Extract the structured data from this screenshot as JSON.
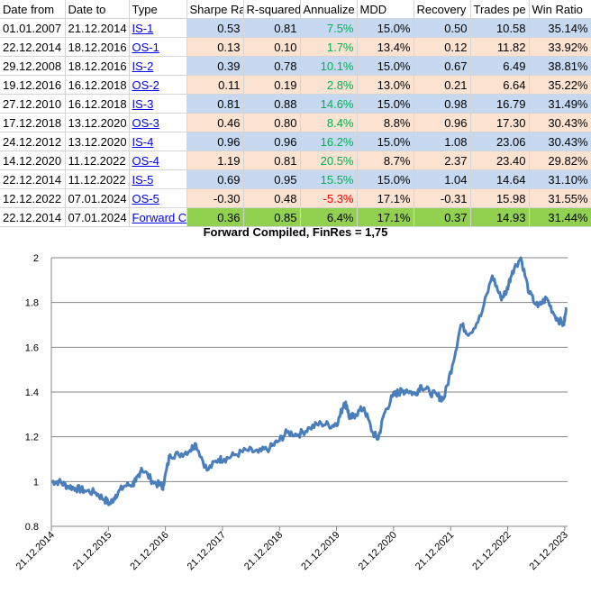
{
  "table": {
    "headers": [
      "Date from",
      "Date to",
      "Type",
      "Sharpe Ra",
      "R-squared",
      "Annualize",
      "MDD",
      "Recovery",
      "Trades pe",
      "Win Ratio"
    ],
    "rows": [
      {
        "kind": "is",
        "from": "01.01.2007",
        "to": "21.12.2014",
        "type": "IS-1",
        "sharpe": "0.53",
        "r2": "0.81",
        "annual": "7.5%",
        "annual_sign": "pos",
        "mdd": "15.0%",
        "recovery": "0.50",
        "trades": "10.58",
        "win": "35.14%"
      },
      {
        "kind": "os",
        "from": "22.12.2014",
        "to": "18.12.2016",
        "type": "OS-1",
        "sharpe": "0.13",
        "r2": "0.10",
        "annual": "1.7%",
        "annual_sign": "pos",
        "mdd": "13.4%",
        "recovery": "0.12",
        "trades": "11.82",
        "win": "33.92%"
      },
      {
        "kind": "is",
        "from": "29.12.2008",
        "to": "18.12.2016",
        "type": "IS-2",
        "sharpe": "0.39",
        "r2": "0.78",
        "annual": "10.1%",
        "annual_sign": "pos",
        "mdd": "15.0%",
        "recovery": "0.67",
        "trades": "6.49",
        "win": "38.81%"
      },
      {
        "kind": "os",
        "from": "19.12.2016",
        "to": "16.12.2018",
        "type": "OS-2",
        "sharpe": "0.11",
        "r2": "0.19",
        "annual": "2.8%",
        "annual_sign": "pos",
        "mdd": "13.0%",
        "recovery": "0.21",
        "trades": "6.64",
        "win": "35.22%"
      },
      {
        "kind": "is",
        "from": "27.12.2010",
        "to": "16.12.2018",
        "type": "IS-3",
        "sharpe": "0.81",
        "r2": "0.88",
        "annual": "14.6%",
        "annual_sign": "pos",
        "mdd": "15.0%",
        "recovery": "0.98",
        "trades": "16.79",
        "win": "31.49%"
      },
      {
        "kind": "os",
        "from": "17.12.2018",
        "to": "13.12.2020",
        "type": "OS-3",
        "sharpe": "0.46",
        "r2": "0.80",
        "annual": "8.4%",
        "annual_sign": "pos",
        "mdd": "8.8%",
        "recovery": "0.96",
        "trades": "17.30",
        "win": "30.43%"
      },
      {
        "kind": "is",
        "from": "24.12.2012",
        "to": "13.12.2020",
        "type": "IS-4",
        "sharpe": "0.96",
        "r2": "0.96",
        "annual": "16.2%",
        "annual_sign": "pos",
        "mdd": "15.0%",
        "recovery": "1.08",
        "trades": "23.06",
        "win": "30.43%"
      },
      {
        "kind": "os",
        "from": "14.12.2020",
        "to": "11.12.2022",
        "type": "OS-4",
        "sharpe": "1.19",
        "r2": "0.81",
        "annual": "20.5%",
        "annual_sign": "pos",
        "mdd": "8.7%",
        "recovery": "2.37",
        "trades": "23.40",
        "win": "29.82%"
      },
      {
        "kind": "is",
        "from": "22.12.2014",
        "to": "11.12.2022",
        "type": "IS-5",
        "sharpe": "0.69",
        "r2": "0.95",
        "annual": "15.5%",
        "annual_sign": "pos",
        "mdd": "15.0%",
        "recovery": "1.04",
        "trades": "14.64",
        "win": "31.10%"
      },
      {
        "kind": "os",
        "from": "12.12.2022",
        "to": "07.01.2024",
        "type": "OS-5",
        "sharpe": "-0.30",
        "r2": "0.48",
        "annual": "-5.3%",
        "annual_sign": "neg",
        "mdd": "17.1%",
        "recovery": "-0.31",
        "trades": "15.98",
        "win": "31.55%"
      },
      {
        "kind": "fwd",
        "from": "22.12.2014",
        "to": "07.01.2024",
        "type": "Forward C",
        "sharpe": "0.36",
        "r2": "0.85",
        "annual": "6.4%",
        "annual_sign": "none",
        "mdd": "17.1%",
        "recovery": "0.37",
        "trades": "14.93",
        "win": "31.44%"
      }
    ]
  },
  "colors": {
    "line": "#4a7ebb",
    "grid": "#868686",
    "is_row": "#c6d9f1",
    "os_row": "#fbe2d1",
    "forward_row": "#92d050",
    "positive_text": "#00b050",
    "negative_text": "#ff0000",
    "link": "#0000ee"
  },
  "chart_data": {
    "type": "line",
    "title": "Forward Compiled, FinRes = 1,75",
    "xlabel": "",
    "ylabel": "",
    "ylim": [
      0.8,
      2.0
    ],
    "yticks": [
      "0.8",
      "1",
      "1.2",
      "1.4",
      "1.6",
      "1.8",
      "2"
    ],
    "ytick_values": [
      0.8,
      1.0,
      1.2,
      1.4,
      1.6,
      1.8,
      2.0
    ],
    "xlim": [
      2014.97,
      2024.02
    ],
    "xticks": [
      "21.12.2014",
      "21.12.2015",
      "21.12.2016",
      "21.12.2017",
      "21.12.2018",
      "21.12.2019",
      "21.12.2020",
      "21.12.2021",
      "21.12.2022",
      "21.12.2023"
    ],
    "xtick_values": [
      2014.97,
      2015.97,
      2016.97,
      2017.97,
      2018.97,
      2019.97,
      2020.97,
      2021.97,
      2022.97,
      2023.97
    ],
    "grid": "horizontal",
    "series": [
      {
        "name": "Forward Compiled",
        "x": [
          2014.97,
          2015.1,
          2015.25,
          2015.4,
          2015.55,
          2015.75,
          2015.9,
          2016.0,
          2016.1,
          2016.25,
          2016.4,
          2016.45,
          2016.55,
          2016.75,
          2016.9,
          2016.93,
          2017.05,
          2017.2,
          2017.4,
          2017.5,
          2017.7,
          2017.9,
          2018.0,
          2018.2,
          2018.4,
          2018.6,
          2018.8,
          2018.95,
          2019.1,
          2019.3,
          2019.5,
          2019.7,
          2019.9,
          2020.0,
          2020.1,
          2020.15,
          2020.2,
          2020.3,
          2020.45,
          2020.6,
          2020.7,
          2020.8,
          2020.95,
          2021.05,
          2021.1,
          2021.2,
          2021.35,
          2021.45,
          2021.6,
          2021.75,
          2021.85,
          2022.0,
          2022.15,
          2022.3,
          2022.5,
          2022.7,
          2022.85,
          2022.95,
          2023.05,
          2023.2,
          2023.35,
          2023.5,
          2023.65,
          2023.8,
          2023.95,
          2024.0
        ],
        "y": [
          1.0,
          1.0,
          0.98,
          0.97,
          0.96,
          0.95,
          0.92,
          0.9,
          0.94,
          0.98,
          0.99,
          1.0,
          1.06,
          1.0,
          0.98,
          0.98,
          1.12,
          1.12,
          1.14,
          1.17,
          1.05,
          1.1,
          1.1,
          1.12,
          1.14,
          1.13,
          1.15,
          1.18,
          1.22,
          1.21,
          1.24,
          1.26,
          1.25,
          1.27,
          1.35,
          1.34,
          1.28,
          1.3,
          1.33,
          1.22,
          1.19,
          1.3,
          1.38,
          1.4,
          1.4,
          1.41,
          1.39,
          1.43,
          1.4,
          1.38,
          1.37,
          1.52,
          1.7,
          1.66,
          1.74,
          1.92,
          1.82,
          1.85,
          1.94,
          2.0,
          1.84,
          1.78,
          1.82,
          1.74,
          1.7,
          1.77
        ]
      }
    ]
  }
}
